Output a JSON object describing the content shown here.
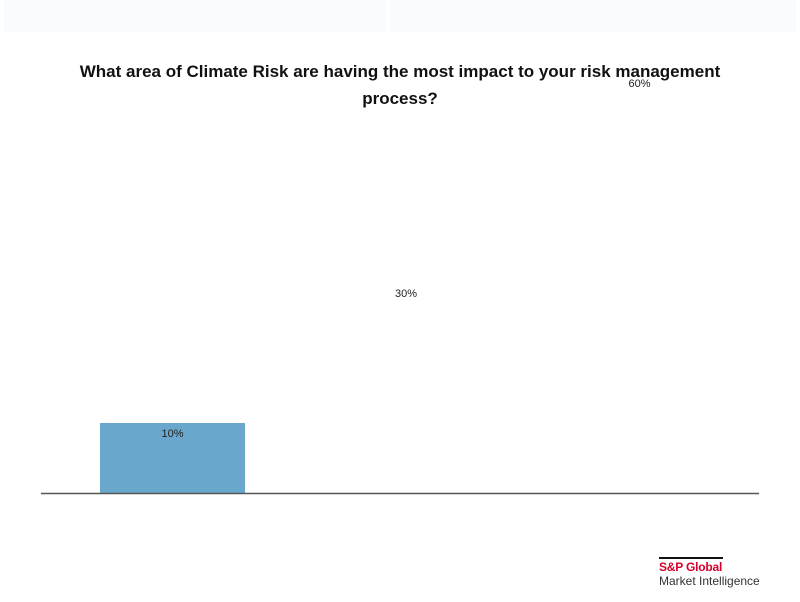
{
  "chart_data": {
    "type": "bar",
    "title": "What area of Climate Risk are having the most impact to your risk management process?",
    "categories": [
      "",
      "",
      ""
    ],
    "values": [
      10,
      30,
      60
    ],
    "data_labels": [
      "10%",
      "30%",
      "60%"
    ],
    "ylim": [
      0,
      60
    ],
    "grid": false,
    "legend": "none",
    "xlabel": "",
    "ylabel": "",
    "colors": {
      "bar": "#69a8cc",
      "axis": "#555555"
    }
  },
  "logo": {
    "brand": "S&P Global",
    "division": "Market Intelligence",
    "brand_color": "#d6002a"
  }
}
